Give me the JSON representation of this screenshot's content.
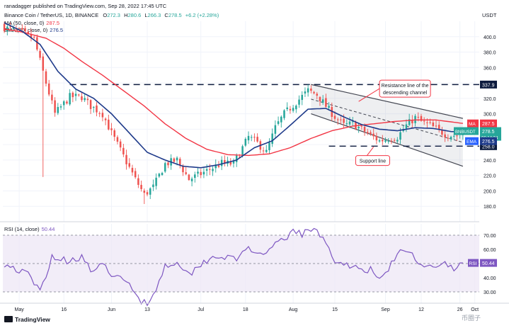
{
  "header": {
    "published": "ranadagger published on TradingView.com, Sep 28, 2022 17:45 UTC",
    "symbol_line": "Binance Coin / TetherUS, 1D, BINANCE",
    "ohlc": {
      "o_label": "O",
      "o": "272.3",
      "h_label": "H",
      "h": "280.6",
      "l_label": "L",
      "l": "266.3",
      "c_label": "C",
      "c": "278.5",
      "chg": "+6.2 (+2.28%)"
    },
    "ma_legend": "MA (50, close, 0)",
    "ma_value": "287.5",
    "ema_legend": "EMA (20, close, 0)",
    "ema_value": "276.5"
  },
  "footer": {
    "brand": "TradingView",
    "watermark": "币圈子"
  },
  "colors": {
    "up": "#26a69a",
    "down": "#ef5350",
    "ma": "#f23645",
    "ema": "#1e3a8a",
    "rsi": "#7e57c2",
    "label_blue": "#2962ff",
    "navy": "#0d1b3e",
    "grid": "#f0f3fa",
    "channel_line": "#434651",
    "annot_border": "#f23645"
  },
  "chart_data": [
    {
      "type": "candlestick",
      "title": "Binance Coin / TetherUS, 1D, BINANCE",
      "ylabel": "USDT",
      "ylim": [
        160,
        420
      ],
      "y_ticks": [
        180.0,
        200.0,
        220.0,
        240.0,
        260.0,
        280.0,
        300.0,
        320.0,
        340.0,
        360.0,
        380.0,
        400.0
      ],
      "x_tick_labels": [
        {
          "day": 5,
          "label": "May"
        },
        {
          "day": 20,
          "label": "16"
        },
        {
          "day": 36,
          "label": "Jun"
        },
        {
          "day": 48,
          "label": "13"
        },
        {
          "day": 66,
          "label": "Jul"
        },
        {
          "day": 81,
          "label": "18"
        },
        {
          "day": 97,
          "label": "Aug"
        },
        {
          "day": 111,
          "label": "15"
        },
        {
          "day": 128,
          "label": "Sep"
        },
        {
          "day": 140,
          "label": "12"
        },
        {
          "day": 153,
          "label": "26"
        },
        {
          "day": 158,
          "label": "Oct"
        }
      ],
      "anchors_close": [
        [
          0,
          412
        ],
        [
          6,
          405
        ],
        [
          10,
          397
        ],
        [
          14,
          340
        ],
        [
          17,
          300
        ],
        [
          22,
          322
        ],
        [
          26,
          322
        ],
        [
          29,
          310
        ],
        [
          33,
          300
        ],
        [
          36,
          275
        ],
        [
          40,
          245
        ],
        [
          44,
          215
        ],
        [
          47,
          195
        ],
        [
          50,
          205
        ],
        [
          54,
          235
        ],
        [
          58,
          240
        ],
        [
          62,
          215
        ],
        [
          66,
          222
        ],
        [
          70,
          230
        ],
        [
          73,
          236
        ],
        [
          77,
          235
        ],
        [
          82,
          270
        ],
        [
          85,
          262
        ],
        [
          88,
          250
        ],
        [
          91,
          282
        ],
        [
          94,
          300
        ],
        [
          98,
          315
        ],
        [
          102,
          330
        ],
        [
          105,
          325
        ],
        [
          108,
          310
        ],
        [
          111,
          296
        ],
        [
          114,
          285
        ],
        [
          117,
          287
        ],
        [
          120,
          280
        ],
        [
          123,
          272
        ],
        [
          126,
          265
        ],
        [
          129,
          268
        ],
        [
          132,
          270
        ],
        [
          135,
          285
        ],
        [
          138,
          295
        ],
        [
          140,
          290
        ],
        [
          143,
          285
        ],
        [
          146,
          278
        ],
        [
          149,
          272
        ],
        [
          152,
          272
        ],
        [
          154,
          278.5
        ]
      ],
      "ma_anchors": [
        [
          0,
          410
        ],
        [
          6,
          406
        ],
        [
          14,
          398
        ],
        [
          20,
          385
        ],
        [
          26,
          368
        ],
        [
          33,
          350
        ],
        [
          40,
          330
        ],
        [
          47,
          310
        ],
        [
          54,
          287
        ],
        [
          61,
          268
        ],
        [
          68,
          254
        ],
        [
          75,
          247
        ],
        [
          82,
          246
        ],
        [
          89,
          248
        ],
        [
          96,
          256
        ],
        [
          103,
          268
        ],
        [
          110,
          278
        ],
        [
          117,
          284
        ],
        [
          124,
          287
        ],
        [
          131,
          290
        ],
        [
          138,
          292
        ],
        [
          145,
          292
        ],
        [
          152,
          288.5
        ],
        [
          154,
          287.5
        ]
      ],
      "ema_anchors": [
        [
          0,
          418
        ],
        [
          6,
          407
        ],
        [
          12,
          390
        ],
        [
          18,
          355
        ],
        [
          24,
          332
        ],
        [
          30,
          320
        ],
        [
          36,
          300
        ],
        [
          42,
          275
        ],
        [
          48,
          250
        ],
        [
          54,
          240
        ],
        [
          60,
          232
        ],
        [
          66,
          230
        ],
        [
          72,
          234
        ],
        [
          78,
          240
        ],
        [
          84,
          256
        ],
        [
          90,
          265
        ],
        [
          96,
          285
        ],
        [
          102,
          306
        ],
        [
          108,
          307
        ],
        [
          114,
          296
        ],
        [
          120,
          286
        ],
        [
          126,
          280
        ],
        [
          132,
          278
        ],
        [
          138,
          282
        ],
        [
          144,
          281
        ],
        [
          150,
          277
        ],
        [
          154,
          276.5
        ]
      ],
      "levels": [
        {
          "name": "resistance",
          "value": 337.9,
          "label": "337.9"
        },
        {
          "name": "support",
          "value": 258.0,
          "label": "258.0"
        }
      ],
      "price_tags": [
        {
          "name": "ma-tag",
          "tag": "MA",
          "value": "287.5",
          "price": 287.5
        },
        {
          "name": "last-price-tag",
          "tag": "BNBUSDT",
          "value": "278.5",
          "countdown": "06:14:34",
          "price": 278.5
        },
        {
          "name": "ema-tag",
          "tag": "EMA",
          "value": "276.5",
          "price": 276.5
        }
      ],
      "channel": {
        "upper": [
          [
            103,
            338
          ],
          [
            154,
            294
          ]
        ],
        "lower": [
          [
            103,
            300
          ],
          [
            154,
            232
          ]
        ],
        "mid": [
          [
            103,
            319
          ],
          [
            154,
            263
          ]
        ]
      },
      "annotations": [
        {
          "name": "resistance-annotation",
          "text": [
            "Resistance line of the",
            "descending channel"
          ]
        },
        {
          "name": "support-annotation",
          "text": [
            "Support line"
          ]
        }
      ]
    },
    {
      "type": "line",
      "title": "RSI (14, close)",
      "value_label": "50.44",
      "ylim": [
        22,
        78
      ],
      "y_ticks": [
        30.0,
        40.0,
        50.0,
        60.0,
        70.0
      ],
      "overbought": 70,
      "oversold": 30,
      "anchors": [
        [
          0,
          50
        ],
        [
          8,
          42
        ],
        [
          12,
          30
        ],
        [
          16,
          55
        ],
        [
          21,
          52
        ],
        [
          26,
          55
        ],
        [
          29,
          45
        ],
        [
          33,
          48
        ],
        [
          38,
          40
        ],
        [
          42,
          35
        ],
        [
          46,
          24
        ],
        [
          48,
          22
        ],
        [
          50,
          28
        ],
        [
          54,
          48
        ],
        [
          58,
          52
        ],
        [
          62,
          42
        ],
        [
          66,
          50
        ],
        [
          70,
          55
        ],
        [
          74,
          55
        ],
        [
          78,
          52
        ],
        [
          82,
          63
        ],
        [
          85,
          55
        ],
        [
          88,
          55
        ],
        [
          90,
          62
        ],
        [
          94,
          68
        ],
        [
          98,
          73
        ],
        [
          100,
          70
        ],
        [
          102,
          74
        ],
        [
          105,
          72
        ],
        [
          108,
          66
        ],
        [
          111,
          52
        ],
        [
          114,
          47
        ],
        [
          117,
          50
        ],
        [
          120,
          45
        ],
        [
          123,
          46
        ],
        [
          126,
          38
        ],
        [
          130,
          50
        ],
        [
          134,
          60
        ],
        [
          136,
          58
        ],
        [
          139,
          52
        ],
        [
          142,
          48
        ],
        [
          145,
          46
        ],
        [
          148,
          50
        ],
        [
          151,
          46
        ],
        [
          154,
          50.44
        ]
      ]
    }
  ]
}
